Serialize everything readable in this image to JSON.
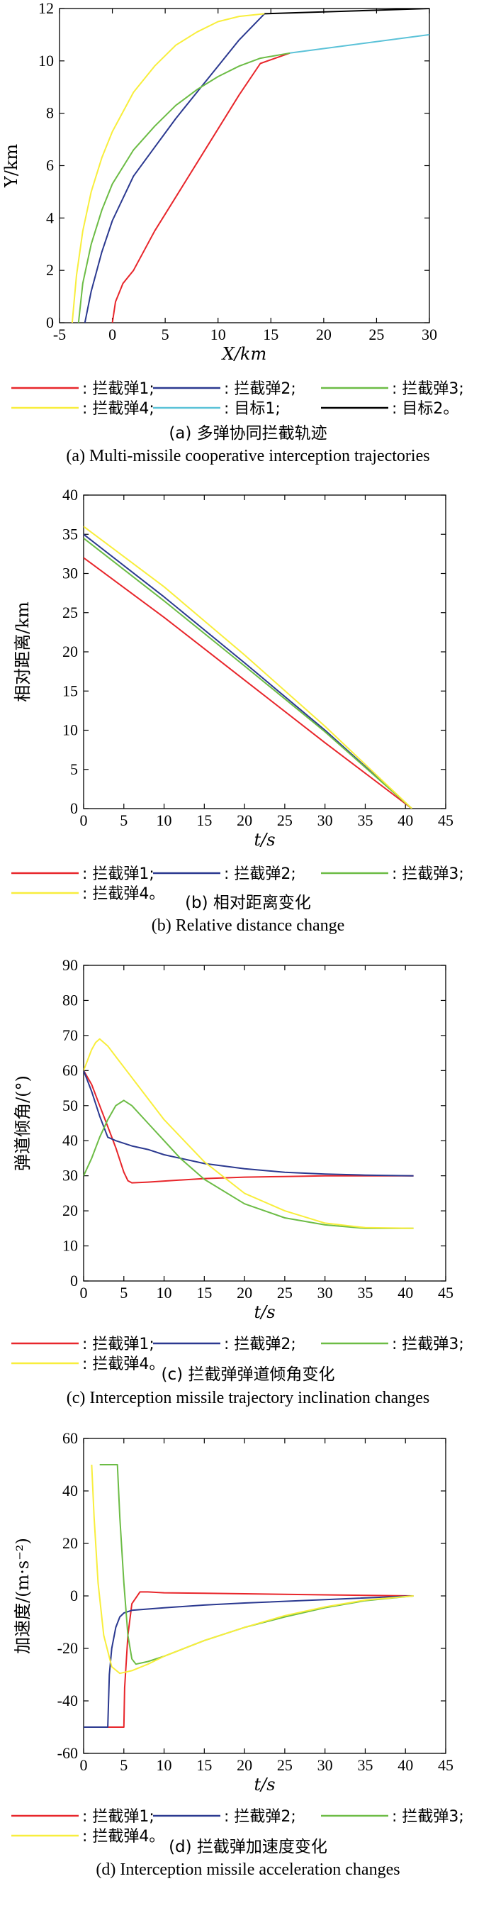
{
  "chart_data": [
    {
      "id": "a",
      "type": "line",
      "xlabel": "X/km",
      "ylabel": "Y/km",
      "xlim": [
        -5,
        30
      ],
      "ylim": [
        0,
        12
      ],
      "xticks": [
        -5,
        0,
        5,
        10,
        15,
        20,
        25,
        30
      ],
      "yticks": [
        0,
        2,
        4,
        6,
        8,
        10,
        12
      ],
      "grid": false,
      "legend_placement": "below",
      "legend_columns": 3,
      "series": [
        {
          "name": ": 拦截弹1;",
          "color": "#e8262b",
          "x": [
            0,
            0.3,
            1,
            2,
            4,
            6,
            8,
            10,
            12,
            14,
            16.8
          ],
          "y": [
            0,
            0.8,
            1.5,
            2.0,
            3.5,
            4.8,
            6.1,
            7.4,
            8.7,
            9.9,
            10.3
          ]
        },
        {
          "name": ": 拦截弹2;",
          "color": "#2b3990",
          "x": [
            -2.6,
            -2,
            -1,
            0,
            2,
            4,
            6,
            8,
            10,
            12,
            14.4
          ],
          "y": [
            0,
            1.2,
            2.7,
            3.9,
            5.6,
            6.7,
            7.8,
            8.8,
            9.8,
            10.8,
            11.8
          ]
        },
        {
          "name": ": 拦截弹3;",
          "color": "#6cbc45",
          "x": [
            -3.2,
            -2.8,
            -2,
            -1,
            0,
            2,
            4,
            6,
            8,
            10,
            12,
            14,
            16.8
          ],
          "y": [
            0,
            1.5,
            3.0,
            4.3,
            5.3,
            6.6,
            7.5,
            8.3,
            8.9,
            9.4,
            9.8,
            10.1,
            10.3
          ]
        },
        {
          "name": ": 拦截弹4;",
          "color": "#f8ee3c",
          "x": [
            -3.8,
            -3.4,
            -2.8,
            -2,
            -1,
            0,
            2,
            4,
            6,
            8,
            10,
            12,
            14.4
          ],
          "y": [
            0,
            1.8,
            3.5,
            5.0,
            6.3,
            7.3,
            8.8,
            9.8,
            10.6,
            11.1,
            11.5,
            11.7,
            11.8
          ]
        },
        {
          "name": ": 目标1;",
          "color": "#5bc2d8",
          "x": [
            16.8,
            30
          ],
          "y": [
            10.3,
            11.0
          ]
        },
        {
          "name": ": 目标2。",
          "color": "#000000",
          "x": [
            14.4,
            30
          ],
          "y": [
            11.8,
            12.0
          ]
        }
      ],
      "caption_cn": "(a) 多弹协同拦截轨迹",
      "caption_en": "(a) Multi-missile cooperative interception trajectories"
    },
    {
      "id": "b",
      "type": "line",
      "xlabel": "t/s",
      "ylabel": "相对距离/km",
      "xlim": [
        0,
        45
      ],
      "ylim": [
        0,
        40
      ],
      "xticks": [
        0,
        5,
        10,
        15,
        20,
        25,
        30,
        35,
        40,
        45
      ],
      "yticks": [
        0,
        5,
        10,
        15,
        20,
        25,
        30,
        35,
        40
      ],
      "grid": false,
      "legend_placement": "below",
      "legend_columns": 3,
      "series": [
        {
          "name": ": 拦截弹1;",
          "color": "#e8262b",
          "x": [
            0,
            10,
            20,
            30,
            40.8
          ],
          "y": [
            32,
            24.4,
            16.4,
            8.4,
            0
          ]
        },
        {
          "name": ": 拦截弹2;",
          "color": "#2b3990",
          "x": [
            0,
            10,
            20,
            30,
            40.8
          ],
          "y": [
            35,
            27,
            18.6,
            10.0,
            0
          ]
        },
        {
          "name": ": 拦截弹3;",
          "color": "#6cbc45",
          "x": [
            0,
            10,
            20,
            30,
            40.8
          ],
          "y": [
            34.5,
            26.5,
            18.2,
            9.8,
            0
          ]
        },
        {
          "name": ": 拦截弹4。",
          "color": "#f8ee3c",
          "x": [
            0,
            10,
            20,
            30,
            40.8
          ],
          "y": [
            36,
            28.3,
            19.6,
            10.5,
            0
          ]
        }
      ],
      "caption_cn": "(b) 相对距离变化",
      "caption_en": "(b) Relative distance change"
    },
    {
      "id": "c",
      "type": "line",
      "xlabel": "t/s",
      "ylabel": "弹道倾角/(°)",
      "xlim": [
        0,
        45
      ],
      "ylim": [
        0,
        90
      ],
      "xticks": [
        0,
        5,
        10,
        15,
        20,
        25,
        30,
        35,
        40,
        45
      ],
      "yticks": [
        0,
        10,
        20,
        30,
        40,
        50,
        60,
        70,
        80,
        90
      ],
      "grid": false,
      "legend_placement": "below",
      "legend_columns": 3,
      "series": [
        {
          "name": ": 拦截弹1;",
          "color": "#e8262b",
          "x": [
            0,
            1,
            2,
            3,
            4,
            5,
            5.5,
            6,
            8,
            10,
            15,
            20,
            25,
            30,
            35,
            41
          ],
          "y": [
            60,
            56,
            50,
            44,
            38,
            31,
            28.6,
            28,
            28.2,
            28.5,
            29.2,
            29.6,
            29.8,
            30,
            30,
            30
          ]
        },
        {
          "name": ": 拦截弹2;",
          "color": "#2b3990",
          "x": [
            0,
            1,
            2,
            3,
            4,
            6,
            8,
            10,
            15,
            20,
            25,
            30,
            35,
            41
          ],
          "y": [
            60,
            54,
            47,
            41,
            40,
            38.5,
            37.5,
            36,
            33.5,
            32,
            31,
            30.5,
            30.2,
            30
          ]
        },
        {
          "name": ": 拦截弹3;",
          "color": "#6cbc45",
          "x": [
            0,
            1,
            2,
            3,
            4,
            5,
            6,
            8,
            10,
            12,
            15,
            20,
            25,
            30,
            35,
            38,
            41
          ],
          "y": [
            30,
            35,
            41,
            46,
            50,
            51.5,
            50,
            45,
            40,
            35,
            29,
            22,
            18,
            16,
            15,
            15,
            15
          ]
        },
        {
          "name": ": 拦截弹4。",
          "color": "#f8ee3c",
          "x": [
            0,
            0.5,
            1,
            1.5,
            2,
            3,
            4,
            6,
            8,
            10,
            15,
            20,
            25,
            30,
            35,
            41
          ],
          "y": [
            60,
            63,
            66,
            68,
            69,
            67,
            64,
            58,
            52,
            46,
            34,
            25,
            20,
            16.5,
            15.2,
            15
          ]
        }
      ],
      "caption_cn": "(c) 拦截弹弹道倾角变化",
      "caption_en": "(c) Interception missile trajectory inclination changes"
    },
    {
      "id": "d",
      "type": "line",
      "xlabel": "t/s",
      "ylabel": "加速度/(m·s⁻²)",
      "xlim": [
        0,
        45
      ],
      "ylim": [
        -60,
        60
      ],
      "xticks": [
        0,
        5,
        10,
        15,
        20,
        25,
        30,
        35,
        40,
        45
      ],
      "yticks": [
        -60,
        -40,
        -20,
        0,
        20,
        40,
        60
      ],
      "grid": false,
      "legend_placement": "below",
      "legend_columns": 3,
      "series": [
        {
          "name": ": 拦截弹1;",
          "color": "#e8262b",
          "x": [
            0,
            5,
            5.1,
            5.5,
            6,
            7,
            8,
            10,
            15,
            20,
            30,
            41
          ],
          "y": [
            -50,
            -50,
            -35,
            -15,
            -3,
            1.5,
            1.5,
            1.2,
            1,
            0.8,
            0.4,
            0
          ]
        },
        {
          "name": ": 拦截弹2;",
          "color": "#2b3990",
          "x": [
            0,
            3,
            3.2,
            3.5,
            4,
            4.5,
            5,
            6,
            8,
            10,
            15,
            20,
            30,
            41
          ],
          "y": [
            -50,
            -50,
            -30,
            -20,
            -12,
            -8,
            -6.5,
            -5.5,
            -5,
            -4.5,
            -3.5,
            -2.7,
            -1.4,
            0
          ]
        },
        {
          "name": ": 拦截弹3;",
          "color": "#6cbc45",
          "x": [
            2,
            4.2,
            4.5,
            5,
            5.5,
            6,
            6.5,
            8,
            10,
            15,
            20,
            25,
            30,
            35,
            41
          ],
          "y": [
            50,
            50,
            30,
            5,
            -15,
            -24,
            -26,
            -25,
            -23,
            -17,
            -12,
            -8,
            -4.5,
            -1.8,
            0
          ]
        },
        {
          "name": ": 拦截弹4。",
          "color": "#f8ee3c",
          "x": [
            1,
            1.3,
            1.8,
            2.5,
            3.5,
            4.5,
            6,
            8,
            10,
            15,
            20,
            25,
            30,
            35,
            41
          ],
          "y": [
            50,
            30,
            5,
            -15,
            -27,
            -29.5,
            -28.5,
            -26,
            -23,
            -17,
            -12,
            -7.5,
            -4.2,
            -1.6,
            0
          ]
        }
      ],
      "caption_cn": "(d) 拦截弹加速度变化",
      "caption_en": "(d) Interception missile acceleration changes"
    }
  ]
}
